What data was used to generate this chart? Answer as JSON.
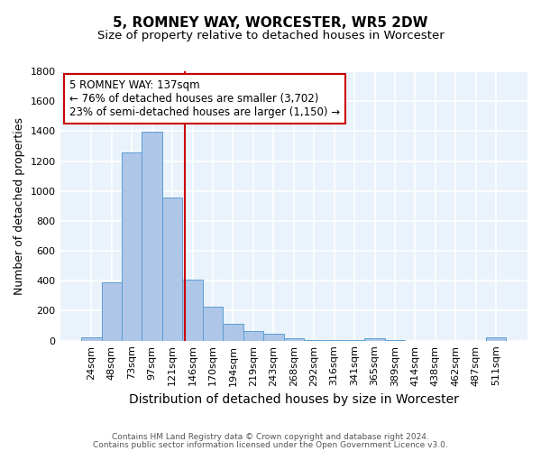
{
  "title": "5, ROMNEY WAY, WORCESTER, WR5 2DW",
  "subtitle": "Size of property relative to detached houses in Worcester",
  "xlabel": "Distribution of detached houses by size in Worcester",
  "ylabel": "Number of detached properties",
  "footnote1": "Contains HM Land Registry data © Crown copyright and database right 2024.",
  "footnote2": "Contains public sector information licensed under the Open Government Licence v3.0.",
  "bar_labels": [
    "24sqm",
    "48sqm",
    "73sqm",
    "97sqm",
    "121sqm",
    "146sqm",
    "170sqm",
    "194sqm",
    "219sqm",
    "243sqm",
    "268sqm",
    "292sqm",
    "316sqm",
    "341sqm",
    "365sqm",
    "389sqm",
    "414sqm",
    "438sqm",
    "462sqm",
    "487sqm",
    "511sqm"
  ],
  "bar_values": [
    25,
    390,
    1260,
    1395,
    955,
    410,
    225,
    110,
    65,
    45,
    15,
    5,
    5,
    5,
    15,
    5,
    0,
    0,
    0,
    0,
    20
  ],
  "bar_color": "#aec6e8",
  "bar_edgecolor": "#5a9fd4",
  "bar_width": 1.0,
  "property_line_color": "#cc0000",
  "annotation_text": "5 ROMNEY WAY: 137sqm\n← 76% of detached houses are smaller (3,702)\n23% of semi-detached houses are larger (1,150) →",
  "annotation_box_edgecolor": "#cc0000",
  "annotation_box_facecolor": "#ffffff",
  "ylim": [
    0,
    1800
  ],
  "yticks": [
    0,
    200,
    400,
    600,
    800,
    1000,
    1200,
    1400,
    1600,
    1800
  ],
  "bg_color": "#eaf3fb",
  "grid_color": "#ffffff",
  "title_fontsize": 11,
  "subtitle_fontsize": 9.5,
  "xlabel_fontsize": 10,
  "ylabel_fontsize": 9,
  "tick_fontsize": 8,
  "annotation_fontsize": 8.5,
  "footnote_fontsize": 6.5
}
